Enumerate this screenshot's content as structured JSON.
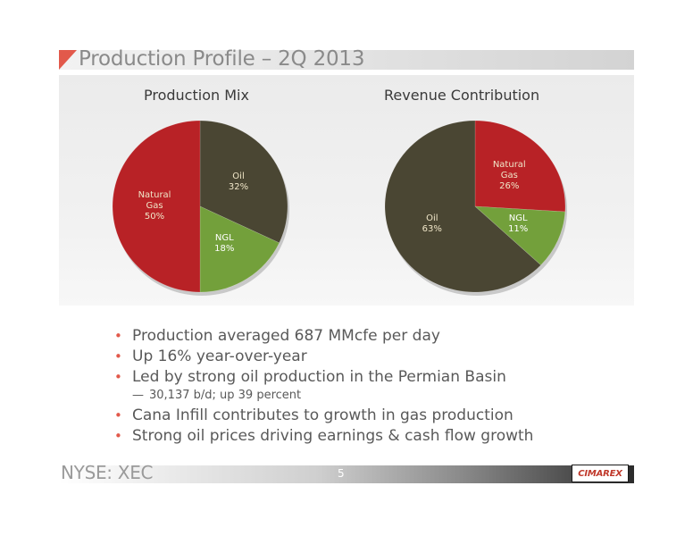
{
  "slide": {
    "title": "Production Profile – 2Q 2013",
    "page_number": "5",
    "ticker": "NYSE: XEC",
    "logo_text": "CIMAREX"
  },
  "colors": {
    "natural_gas": "#b82226",
    "oil": "#4a4633",
    "ngl": "#73a03b",
    "accent": "#e2594b"
  },
  "chart_data": [
    {
      "type": "pie",
      "title": "Production Mix",
      "slices": [
        {
          "name": "Oil",
          "value": 32,
          "label": "32%"
        },
        {
          "name": "NGL",
          "value": 18,
          "label": "18%"
        },
        {
          "name": "Natural Gas",
          "value": 50,
          "label": "50%"
        }
      ]
    },
    {
      "type": "pie",
      "title": "Revenue Contribution",
      "slices": [
        {
          "name": "Natural Gas",
          "value": 26,
          "label": "26%"
        },
        {
          "name": "NGL",
          "value": 11,
          "label": "11%"
        },
        {
          "name": "Oil",
          "value": 63,
          "label": "63%"
        }
      ]
    }
  ],
  "bullets": [
    {
      "text": "Production averaged 687 MMcfe per day"
    },
    {
      "text": "Up 16% year-over-year"
    },
    {
      "text": "Led by strong oil production in the Permian Basin"
    },
    {
      "text": "30,137 b/d; up 39 percent",
      "sub": true
    },
    {
      "text": "Cana Infill contributes to growth in gas production"
    },
    {
      "text": "Strong oil prices driving earnings & cash flow growth"
    }
  ]
}
